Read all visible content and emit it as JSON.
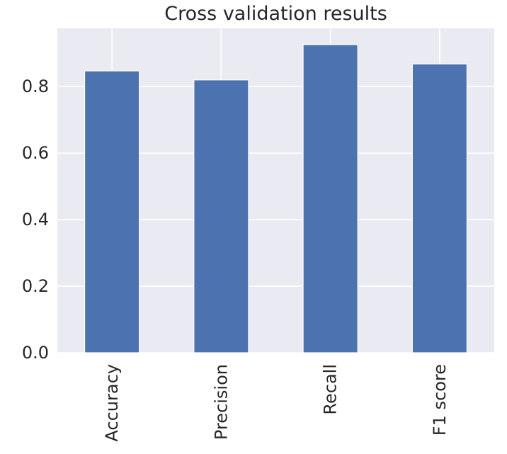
{
  "chart_data": {
    "type": "bar",
    "title": "Cross validation results",
    "xlabel": "",
    "ylabel": "",
    "categories": [
      "Accuracy",
      "Precision",
      "Recall",
      "F1 score"
    ],
    "values": [
      0.847,
      0.82,
      0.926,
      0.868
    ],
    "ylim": [
      0,
      0.975
    ],
    "yticks": [
      0.0,
      0.2,
      0.4,
      0.6,
      0.8
    ],
    "ytick_labels": [
      "0.0",
      "0.2",
      "0.4",
      "0.6",
      "0.8"
    ],
    "grid": true,
    "legend": "none",
    "colors": {
      "bar": "#4c72b0",
      "background": "#eaeaf2",
      "grid": "#ffffff",
      "text": "#262626"
    }
  }
}
